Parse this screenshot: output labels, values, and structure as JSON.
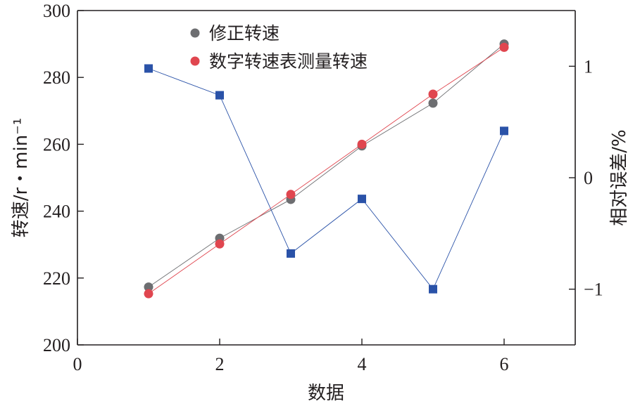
{
  "chart_data": {
    "type": "scatter",
    "x_axis": {
      "label": "数据",
      "range": [
        0,
        7
      ],
      "ticks": [
        0,
        2,
        4,
        6
      ]
    },
    "y_left": {
      "label": "转速/r・min⁻¹",
      "range": [
        200,
        300
      ],
      "ticks": [
        200,
        220,
        240,
        260,
        280,
        300
      ]
    },
    "y_right": {
      "label": "相对误差/%",
      "range": [
        -1.5,
        1.5
      ],
      "ticks": [
        -1,
        0,
        1
      ],
      "tick_labels": [
        "−1",
        "0",
        "1"
      ]
    },
    "legend": {
      "position": "top-center"
    },
    "series": [
      {
        "name": "修正转速",
        "axis": "left",
        "color": "#6d6e71",
        "marker": "circle",
        "line": true,
        "x": [
          1,
          2,
          3,
          4,
          5,
          6
        ],
        "y": [
          217.3,
          231.9,
          243.5,
          259.5,
          272.3,
          290.0
        ]
      },
      {
        "name": "数字转速表测量转速",
        "axis": "left",
        "color": "#e0464f",
        "marker": "circle",
        "line": true,
        "x": [
          1,
          2,
          3,
          4,
          5,
          6
        ],
        "y": [
          215.3,
          230.2,
          245.0,
          260.0,
          275.0,
          289.0
        ]
      },
      {
        "axis": "right",
        "color": "#2a52a8",
        "marker": "square",
        "line": true,
        "x": [
          1,
          2,
          3,
          4,
          5,
          6
        ],
        "y": [
          0.98,
          0.74,
          -0.68,
          -0.19,
          -1.0,
          0.42
        ]
      }
    ]
  }
}
